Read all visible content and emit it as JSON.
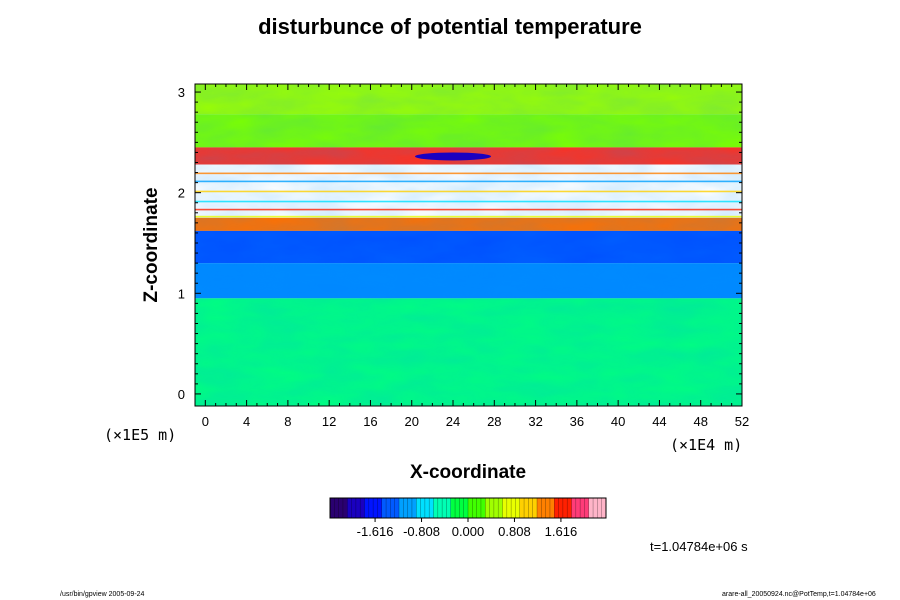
{
  "title": "disturbunce of potential temperature",
  "chart_data": {
    "type": "heatmap",
    "title": "disturbunce of potential temperature",
    "xlabel": "X-coordinate",
    "ylabel": "Z-coordinate",
    "x_unit_label": "(×1E4 m)",
    "y_unit_label": "(×1E5 m)",
    "xlim": [
      -1,
      52
    ],
    "ylim": [
      -0.12,
      3.08
    ],
    "x_ticks": [
      0,
      4,
      8,
      12,
      16,
      20,
      24,
      28,
      32,
      36,
      40,
      44,
      48,
      52
    ],
    "y_ticks": [
      0,
      1,
      2,
      3
    ],
    "colorbar": {
      "colors": [
        "#2a0070",
        "#1a00c0",
        "#0014ff",
        "#005aff",
        "#00a0ff",
        "#00e0ff",
        "#00ffb4",
        "#00ff40",
        "#40ff00",
        "#a0ff00",
        "#e8ff00",
        "#ffd000",
        "#ff8000",
        "#ff2000",
        "#ff3c78",
        "#ffb4c8"
      ],
      "tick_values": [
        -1.616,
        -0.808,
        0.0,
        0.808,
        1.616
      ],
      "tick_labels": [
        "-1.616",
        "-0.808",
        "0.000",
        "0.808",
        "1.616"
      ]
    },
    "layers": [
      {
        "z_range": [
          2.78,
          3.08
        ],
        "value": 0.5,
        "color": "#9cff00"
      },
      {
        "z_range": [
          2.45,
          2.78
        ],
        "value": 0.4,
        "color": "#7cff00"
      },
      {
        "z_range": [
          2.28,
          2.45
        ],
        "value": 1.6,
        "color": "#ff3020"
      },
      {
        "z_range": [
          1.75,
          2.22
        ],
        "value": 3.0,
        "color": "#ffffff"
      },
      {
        "z_range": [
          1.62,
          1.75
        ],
        "value": 1.2,
        "color": "#ff7000"
      },
      {
        "z_range": [
          1.3,
          1.62
        ],
        "value": -1.2,
        "color": "#0050ff"
      },
      {
        "z_range": [
          0.95,
          1.3
        ],
        "value": -1.0,
        "color": "#0088ff"
      },
      {
        "z_range": [
          -0.12,
          0.95
        ],
        "value": 0.05,
        "color": "#00ff80"
      }
    ]
  },
  "time_label": "t=1.04784e+06 s",
  "footer_left": "/usr/bin/gpview 2005-09-24",
  "footer_right": "arare-all_20050924.nc@PotTemp,t=1.04784e+06"
}
